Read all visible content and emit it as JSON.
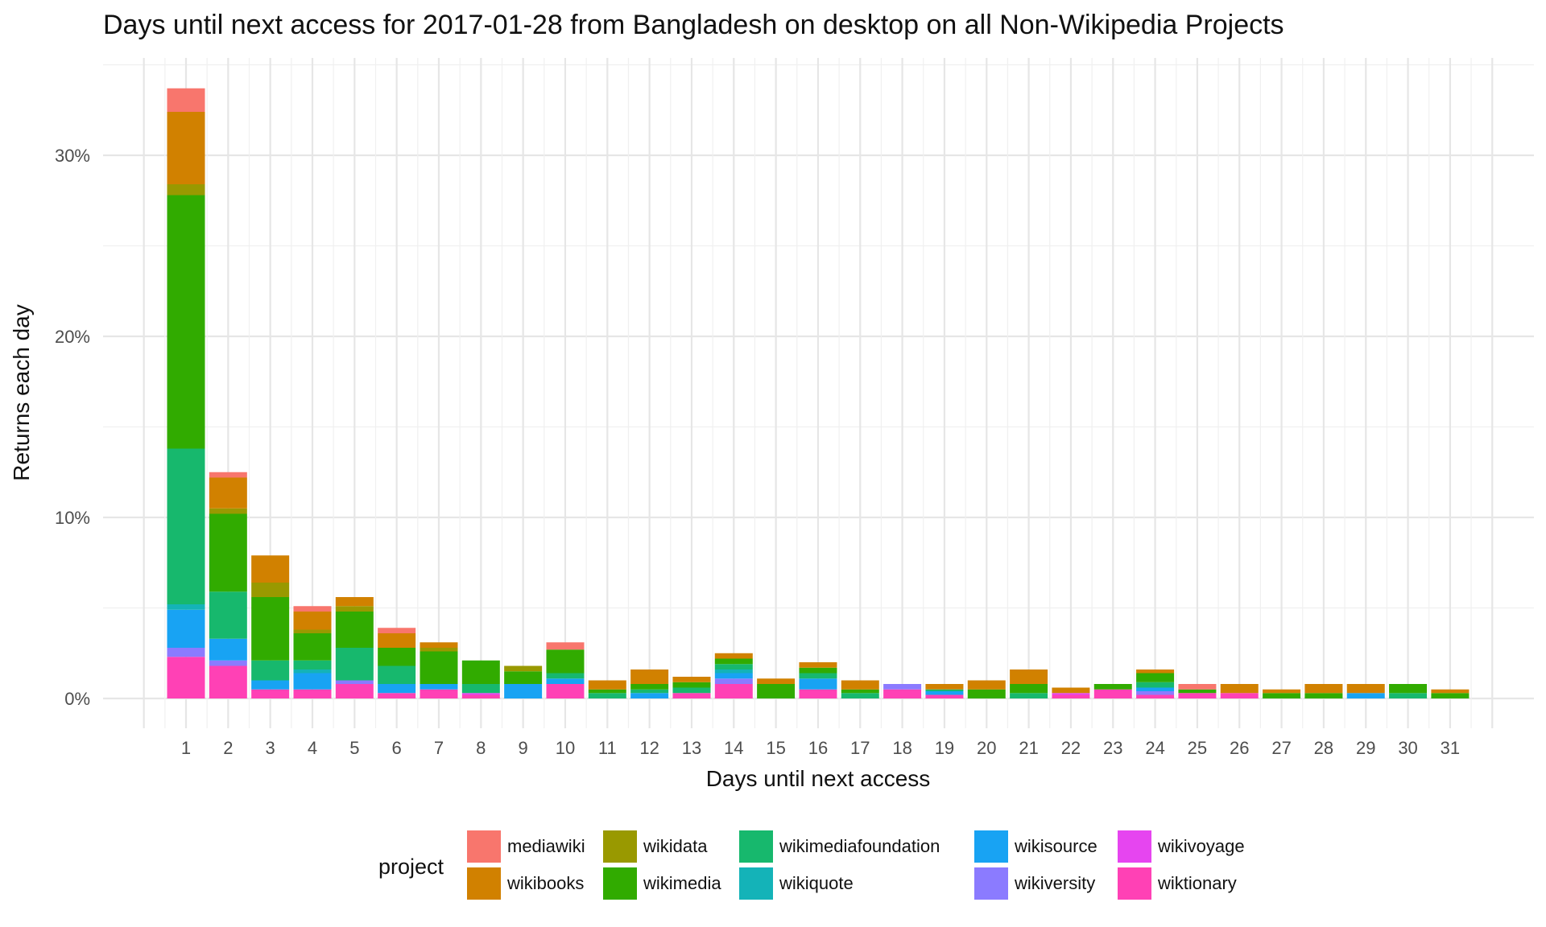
{
  "chart_data": {
    "type": "bar",
    "stacked": true,
    "title": "Days until next access for 2017-01-28 from Bangladesh on desktop on all Non-Wikipedia Projects",
    "xlabel": "Days until next access",
    "ylabel": "Returns each day",
    "ylim": [
      -1.5,
      35
    ],
    "yticks": [
      0,
      10,
      20,
      30
    ],
    "ytick_labels": [
      "0%",
      "10%",
      "20%",
      "30%"
    ],
    "grid": true,
    "legend_position": "bottom",
    "categories": [
      "1",
      "2",
      "3",
      "4",
      "5",
      "6",
      "7",
      "8",
      "9",
      "10",
      "11",
      "12",
      "13",
      "14",
      "15",
      "16",
      "17",
      "18",
      "19",
      "20",
      "21",
      "22",
      "23",
      "24",
      "25",
      "26",
      "27",
      "28",
      "29",
      "30",
      "31"
    ],
    "series": [
      {
        "name": "wiktionary",
        "color": "#FF41B5",
        "values": [
          2.3,
          1.8,
          0.5,
          0.5,
          0.8,
          0.3,
          0.5,
          0.2,
          0,
          0.8,
          0,
          0,
          0.3,
          0.8,
          0,
          0.5,
          0,
          0.5,
          0.2,
          0,
          0,
          0.2,
          0.5,
          0.2,
          0.3,
          0.3,
          0,
          0,
          0,
          0,
          0
        ]
      },
      {
        "name": "wikivoyage",
        "color": "#E645F0",
        "values": [
          0,
          0,
          0,
          0,
          0,
          0,
          0,
          0.1,
          0,
          0,
          0,
          0,
          0,
          0,
          0,
          0,
          0,
          0,
          0,
          0,
          0,
          0.1,
          0,
          0,
          0,
          0,
          0,
          0,
          0,
          0,
          0
        ]
      },
      {
        "name": "wikiversity",
        "color": "#8B7BFF",
        "values": [
          0.5,
          0.3,
          0,
          0,
          0.2,
          0,
          0,
          0,
          0,
          0,
          0,
          0,
          0,
          0.3,
          0,
          0,
          0,
          0.3,
          0,
          0,
          0,
          0,
          0,
          0.2,
          0,
          0,
          0,
          0,
          0,
          0,
          0
        ]
      },
      {
        "name": "wikisource",
        "color": "#18A3F3",
        "values": [
          2.1,
          1.2,
          0.5,
          0.9,
          0,
          0.5,
          0.3,
          0,
          0.8,
          0.3,
          0,
          0.3,
          0,
          0.3,
          0,
          0.6,
          0,
          0,
          0.2,
          0,
          0,
          0,
          0,
          0.2,
          0,
          0,
          0,
          0,
          0.3,
          0,
          0
        ]
      },
      {
        "name": "wikiquote",
        "color": "#14B3B8",
        "values": [
          0.3,
          0,
          0,
          0.2,
          0,
          0,
          0,
          0,
          0,
          0,
          0,
          0,
          0,
          0.2,
          0,
          0,
          0,
          0,
          0,
          0,
          0,
          0,
          0,
          0,
          0,
          0,
          0,
          0,
          0,
          0,
          0
        ]
      },
      {
        "name": "wikimediafoundation",
        "color": "#17B86D",
        "values": [
          8.6,
          2.6,
          1.1,
          0.5,
          1.8,
          1.0,
          0,
          0.5,
          0,
          0.3,
          0.3,
          0.2,
          0.3,
          0.3,
          0,
          0.3,
          0.3,
          0,
          0.1,
          0,
          0.3,
          0,
          0,
          0.3,
          0,
          0,
          0,
          0,
          0,
          0.3,
          0
        ]
      },
      {
        "name": "wikimedia",
        "color": "#31AB00",
        "values": [
          14.0,
          4.3,
          3.5,
          1.5,
          2.0,
          1.0,
          1.8,
          1.3,
          0.7,
          1.3,
          0.2,
          0.3,
          0.3,
          0.3,
          0.8,
          0.3,
          0.2,
          0,
          0,
          0.5,
          0.5,
          0,
          0.3,
          0.5,
          0.2,
          0,
          0.3,
          0.3,
          0,
          0.5,
          0.3
        ]
      },
      {
        "name": "wikidata",
        "color": "#999900",
        "values": [
          0.6,
          0.3,
          0.8,
          0.2,
          0.3,
          0,
          0.2,
          0,
          0.3,
          0,
          0,
          0,
          0,
          0,
          0,
          0,
          0,
          0,
          0,
          0,
          0,
          0,
          0,
          0,
          0,
          0,
          0,
          0,
          0,
          0,
          0
        ]
      },
      {
        "name": "wikibooks",
        "color": "#D18100",
        "values": [
          4.0,
          1.7,
          1.5,
          1.0,
          0.5,
          0.8,
          0.3,
          0,
          0,
          0,
          0.5,
          0.8,
          0.3,
          0.3,
          0.3,
          0.3,
          0.5,
          0,
          0.3,
          0.5,
          0.8,
          0.3,
          0,
          0.2,
          0,
          0.5,
          0.2,
          0.5,
          0.5,
          0,
          0.2
        ]
      },
      {
        "name": "mediawiki",
        "color": "#F8766D",
        "values": [
          1.3,
          0.3,
          0,
          0.3,
          0,
          0.3,
          0,
          0,
          0,
          0.4,
          0,
          0,
          0,
          0,
          0,
          0,
          0,
          0,
          0,
          0,
          0,
          0,
          0,
          0,
          0.3,
          0,
          0,
          0,
          0,
          0,
          0
        ]
      }
    ]
  },
  "legend": {
    "title": "project",
    "items": [
      {
        "label": "mediawiki",
        "color": "#F8766D"
      },
      {
        "label": "wikibooks",
        "color": "#D18100"
      },
      {
        "label": "wikidata",
        "color": "#999900"
      },
      {
        "label": "wikimedia",
        "color": "#31AB00"
      },
      {
        "label": "wikimediafoundation",
        "color": "#17B86D"
      },
      {
        "label": "wikiquote",
        "color": "#14B3B8"
      },
      {
        "label": "wikisource",
        "color": "#18A3F3"
      },
      {
        "label": "wikiversity",
        "color": "#8B7BFF"
      },
      {
        "label": "wikivoyage",
        "color": "#E645F0"
      },
      {
        "label": "wiktionary",
        "color": "#FF41B5"
      }
    ]
  }
}
